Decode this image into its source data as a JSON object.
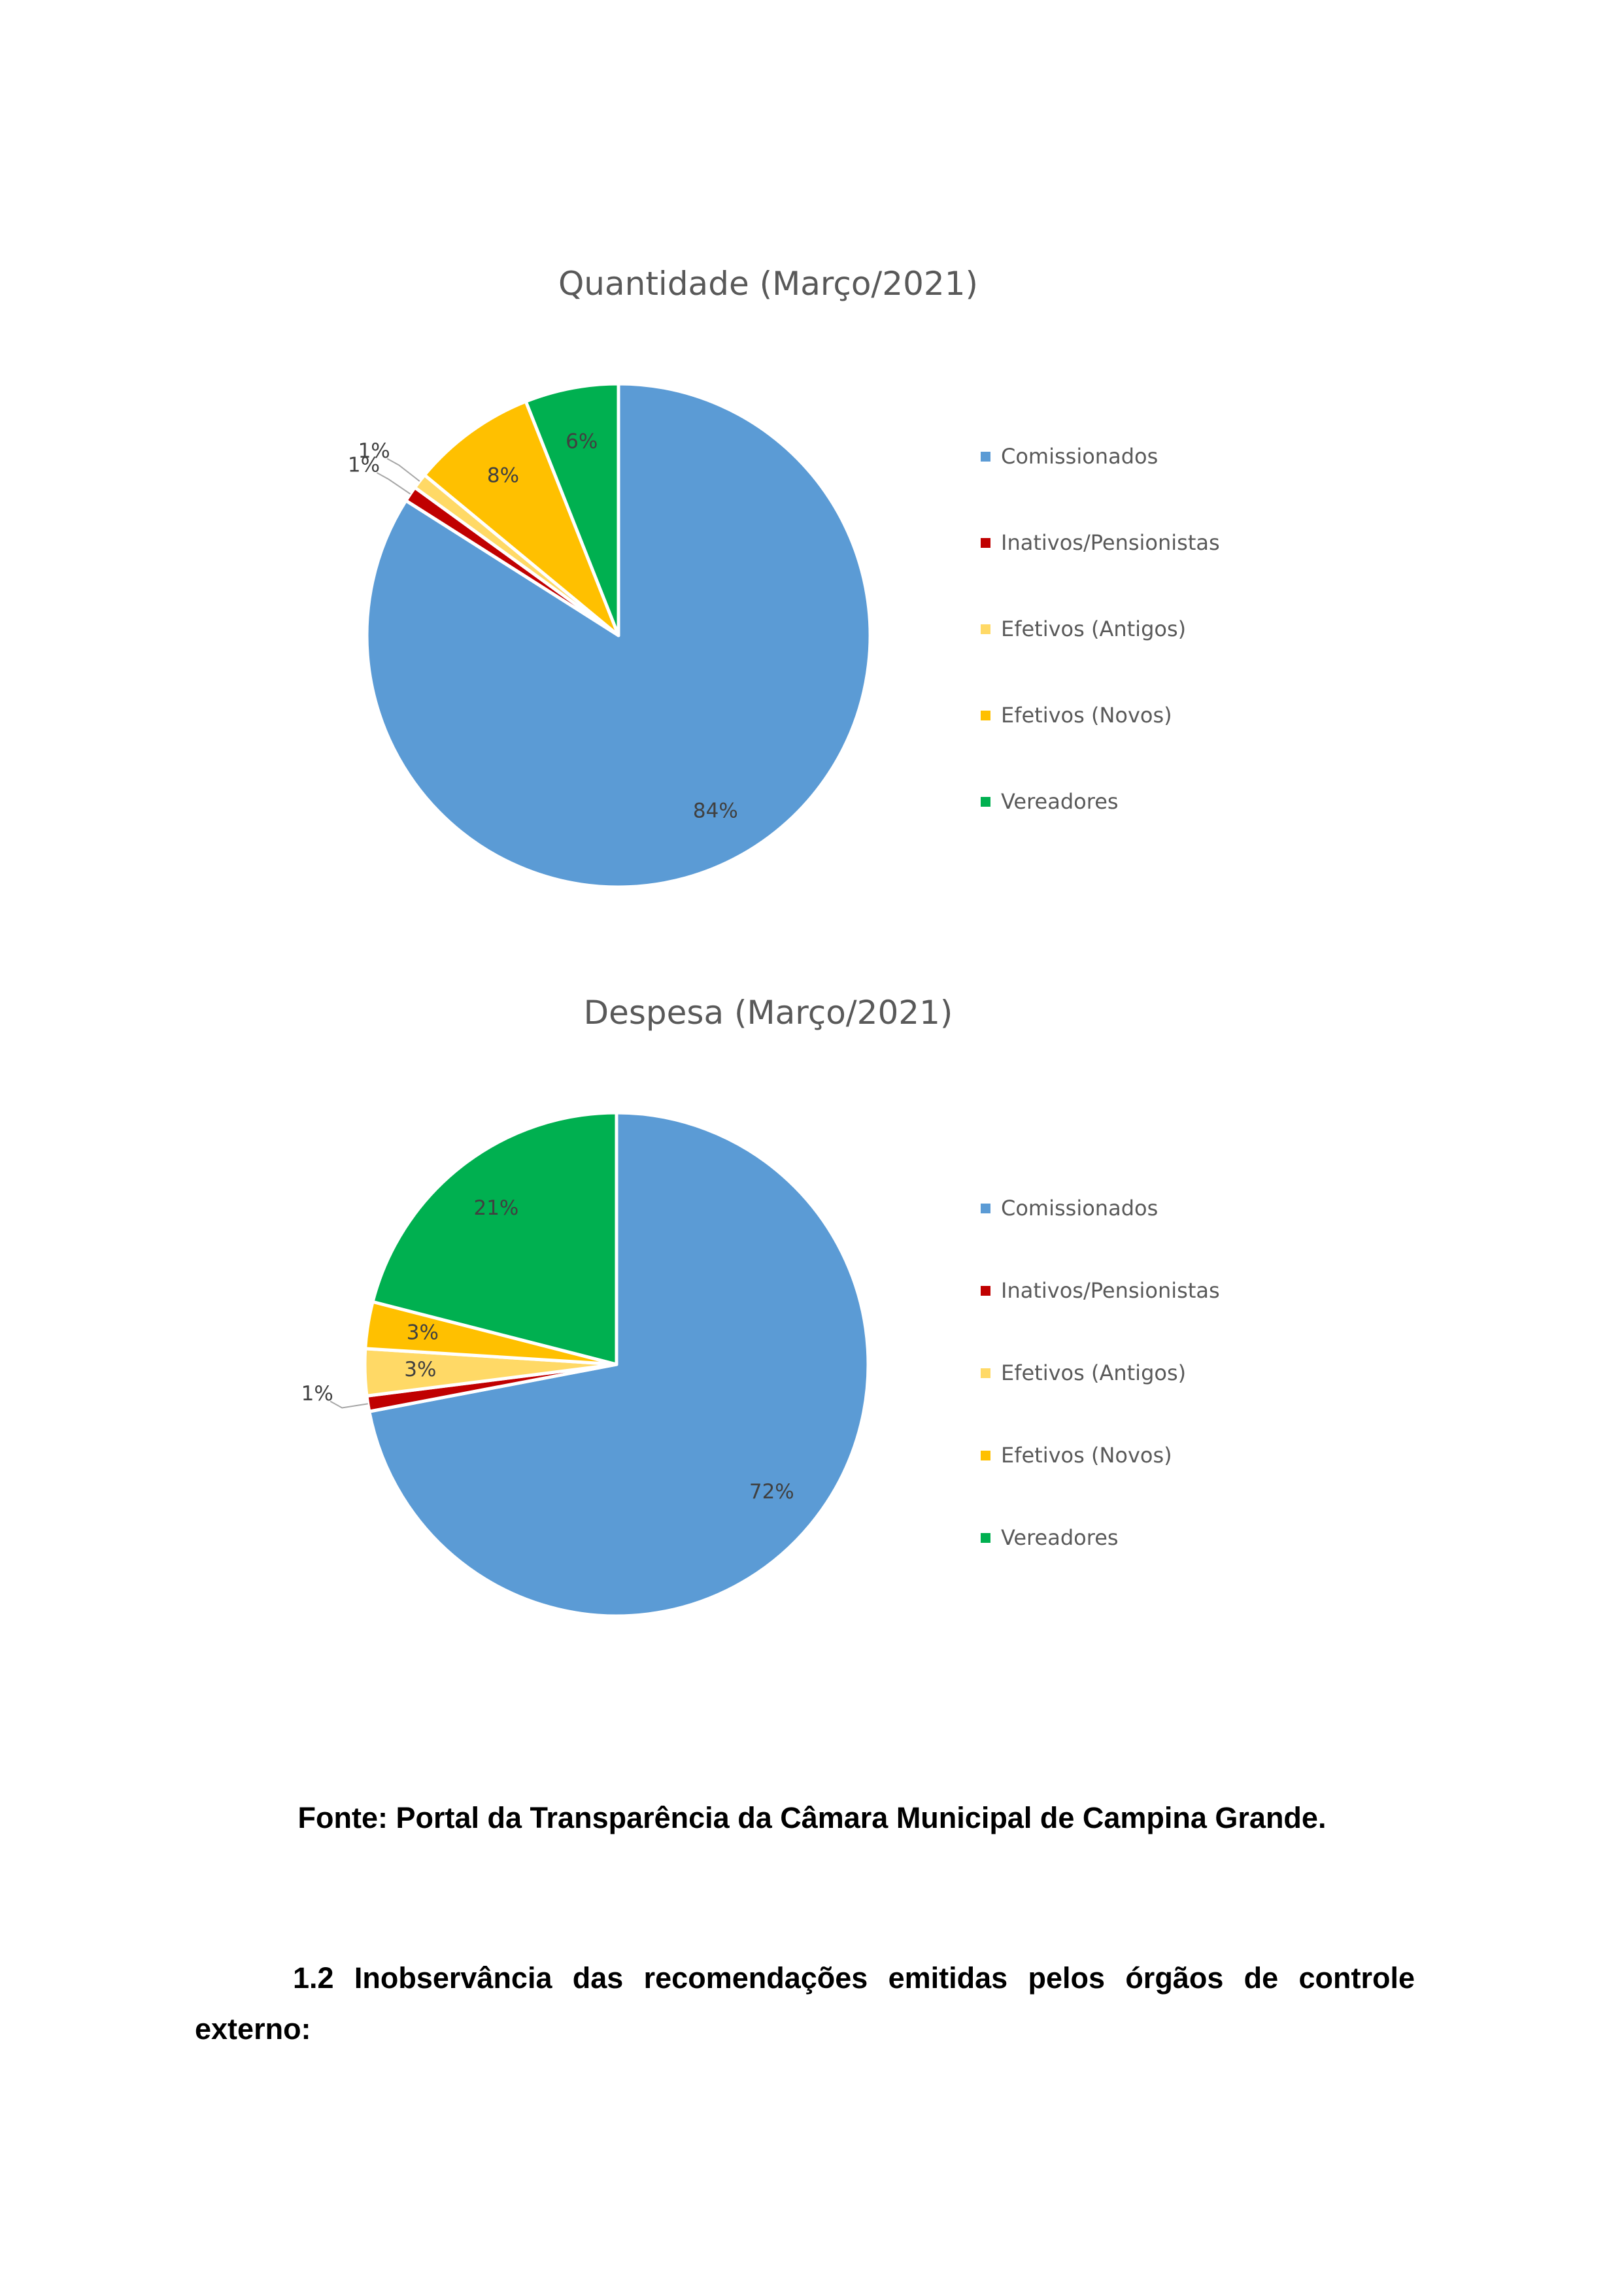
{
  "chart_data": [
    {
      "type": "pie",
      "title": "Quantidade (Março/2021)",
      "categories": [
        "Comissionados",
        "Inativos/Pensionistas",
        "Efetivos (Antigos)",
        "Efetivos (Novos)",
        "Vereadores"
      ],
      "values": [
        84,
        1,
        1,
        8,
        6
      ],
      "labels": [
        "84%",
        "1%",
        "1%",
        "8%",
        "6%"
      ],
      "colors": [
        "#5B9BD5",
        "#C00000",
        "#FFD966",
        "#FFC000",
        "#00B050"
      ],
      "legend": "right",
      "start": "top",
      "direction": "clockwise"
    },
    {
      "type": "pie",
      "title": "Despesa (Março/2021)",
      "categories": [
        "Comissionados",
        "Inativos/Pensionistas",
        "Efetivos (Antigos)",
        "Efetivos (Novos)",
        "Vereadores"
      ],
      "values": [
        72,
        1,
        3,
        3,
        21
      ],
      "labels": [
        "72%",
        "1%",
        "3%",
        "3%",
        "21%"
      ],
      "colors": [
        "#5B9BD5",
        "#C00000",
        "#FFD966",
        "#FFC000",
        "#00B050"
      ],
      "legend": "right",
      "start": "top",
      "direction": "clockwise"
    }
  ],
  "source": "Fonte: Portal da Transparência da Câmara Municipal de Campina Grande.",
  "section": {
    "number": "1.2",
    "title_line1": "1.2 Inobservância das recomendações emitidas pelos órgãos de controle",
    "title_line2": "externo:"
  }
}
